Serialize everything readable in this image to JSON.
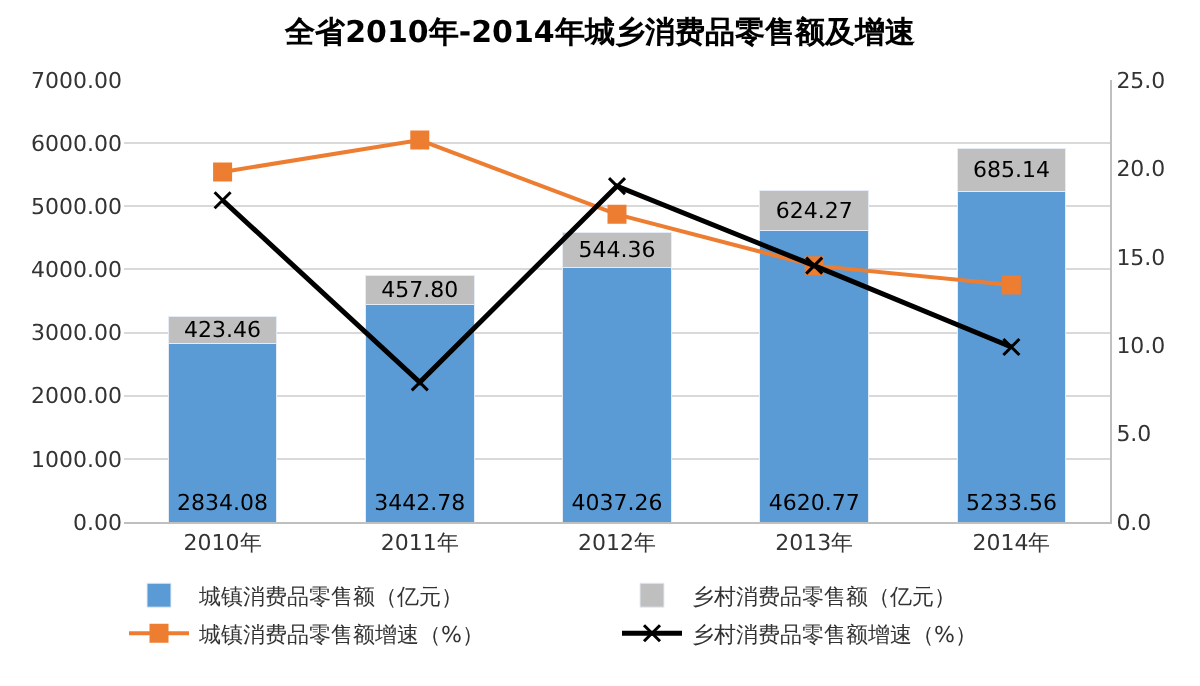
{
  "chart_data": {
    "type": "bar",
    "title": "全省2010年-2014年城乡消费品零售额及增速",
    "categories": [
      "2010年",
      "2011年",
      "2012年",
      "2013年",
      "2014年"
    ],
    "stacked": true,
    "grid": "y",
    "legend": "bottom",
    "series": [
      {
        "name": "城镇消费品零售额（亿元）",
        "color": "#5b9bd5",
        "values": [
          2834.08,
          3442.78,
          4037.26,
          4620.77,
          5233.56
        ],
        "value_labels": [
          "2834.08",
          "3442.78",
          "4037.26",
          "4620.77",
          "5233.56"
        ]
      },
      {
        "name": "乡村消费品零售额（亿元）",
        "color": "#bfbfbf",
        "values": [
          423.46,
          457.8,
          544.36,
          624.27,
          685.14
        ],
        "value_labels": [
          "423.46",
          "457.80",
          "544.36",
          "624.27",
          "685.14"
        ]
      },
      {
        "name": "城镇消费品零售额增速（%）",
        "type": "line",
        "axis": "y2",
        "marker": "square",
        "color": "#ed7d31",
        "values": [
          19.8,
          21.6,
          17.4,
          14.5,
          13.4
        ]
      },
      {
        "name": "乡村消费品零售额增速（%）",
        "type": "line",
        "axis": "y2",
        "marker": "cross",
        "color": "#000000",
        "values": [
          18.2,
          7.9,
          19.0,
          14.5,
          9.9
        ]
      }
    ],
    "ylim": [
      0,
      7000
    ],
    "yticks": [
      {
        "value": 0,
        "label": "0.00"
      },
      {
        "value": 1000,
        "label": "1000.00"
      },
      {
        "value": 2000,
        "label": "2000.00"
      },
      {
        "value": 3000,
        "label": "3000.00"
      },
      {
        "value": 4000,
        "label": "4000.00"
      },
      {
        "value": 5000,
        "label": "5000.00"
      },
      {
        "value": 6000,
        "label": "6000.00"
      },
      {
        "value": 7000,
        "label": "7000.00"
      }
    ],
    "y2lim": [
      0,
      25
    ],
    "y2ticks": [
      {
        "value": 0,
        "label": "0.0"
      },
      {
        "value": 5,
        "label": "5.0"
      },
      {
        "value": 10,
        "label": "10.0"
      },
      {
        "value": 15,
        "label": "15.0"
      },
      {
        "value": 20,
        "label": "20.0"
      },
      {
        "value": 25,
        "label": "25.0"
      }
    ]
  }
}
